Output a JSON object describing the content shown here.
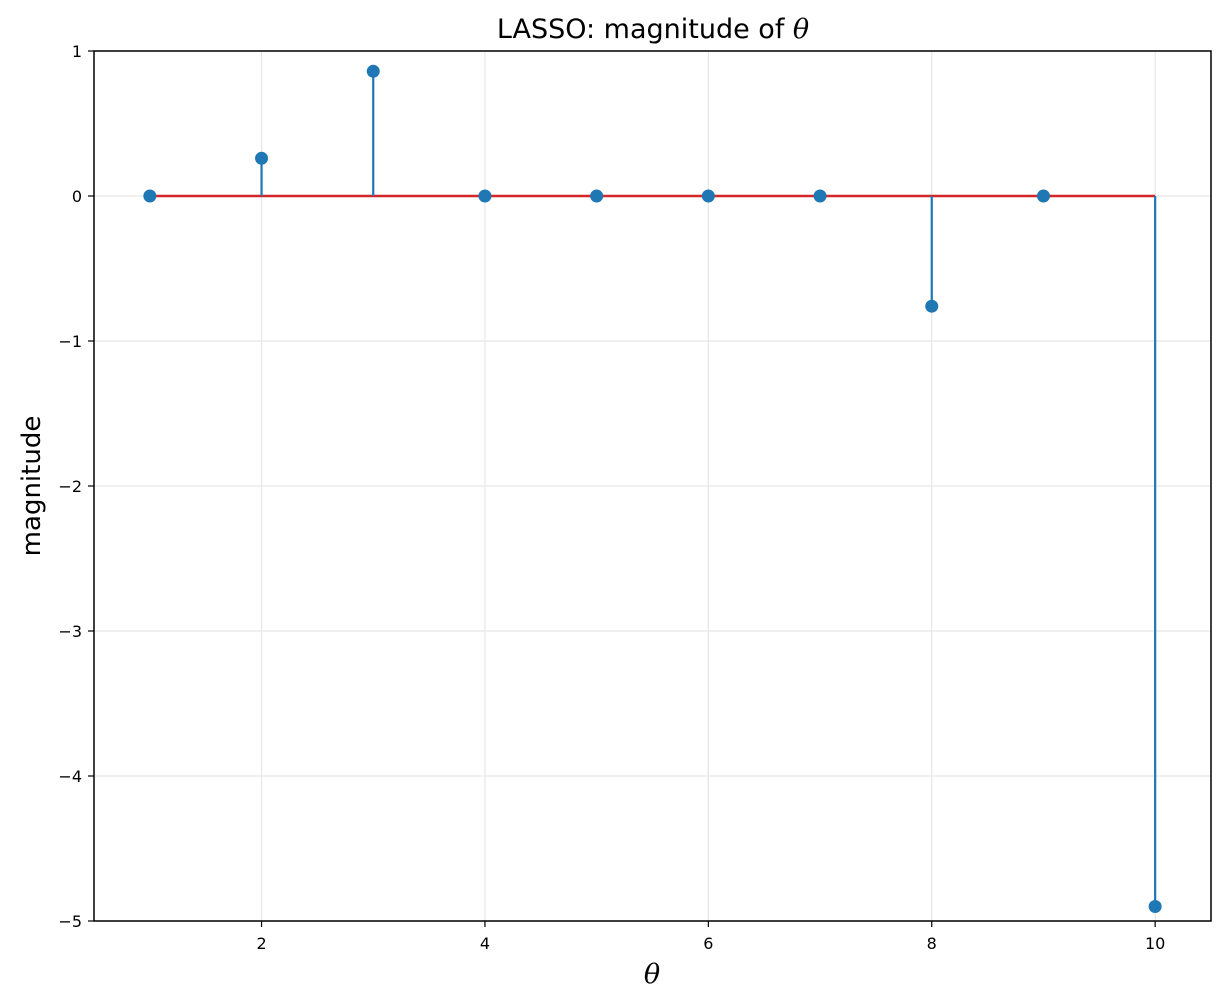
{
  "chart_data": {
    "type": "stem",
    "title_prefix": "LASSO: magnitude of ",
    "title_symbol": "θ",
    "xlabel": "θ",
    "ylabel": "magnitude",
    "x": [
      1,
      2,
      3,
      4,
      5,
      6,
      7,
      8,
      9,
      10
    ],
    "values": [
      0,
      0.26,
      0.86,
      0,
      0,
      0,
      0,
      -0.76,
      0,
      -4.9
    ],
    "xlim": [
      0.5,
      10.5
    ],
    "ylim": [
      -5,
      1
    ],
    "xticks": [
      2,
      4,
      6,
      8,
      10
    ],
    "yticks": [
      -5,
      -4,
      -3,
      -2,
      -1,
      0,
      1
    ],
    "ytick_labels": [
      "−5",
      "−4",
      "−3",
      "−2",
      "−1",
      "0",
      "1"
    ],
    "baseline": 0,
    "grid": true,
    "colors": {
      "stem": "#1f77b4",
      "baseline": "#d62728",
      "grid": "#e6e6e6",
      "axes": "#000000"
    }
  }
}
